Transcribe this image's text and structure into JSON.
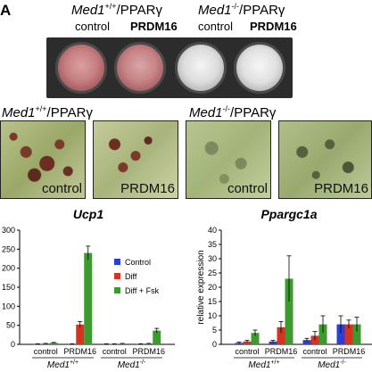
{
  "panel_letter": "A",
  "plate": {
    "headers": [
      {
        "gene": "Med1",
        "sup": "+/+",
        "suffix": "/PPARγ"
      },
      {
        "gene": "Med1",
        "sup": "-/-",
        "suffix": "/PPARγ"
      }
    ],
    "sublabels": [
      "control",
      "PRDM16",
      "control",
      "PRDM16"
    ]
  },
  "micro": {
    "headers": [
      {
        "gene": "Med1",
        "sup": "+/+",
        "suffix": "/PPARγ"
      },
      {
        "gene": "Med1",
        "sup": "-/-",
        "suffix": "/PPARγ"
      }
    ],
    "captions": [
      "control",
      "PRDM16",
      "control",
      "PRDM16"
    ]
  },
  "colors": {
    "control": "#2b3fd6",
    "diff": "#d63320",
    "diff_fsk": "#3d9a2f"
  },
  "chart_data": [
    {
      "type": "bar",
      "title": "Ucp1",
      "ylabel": "",
      "ylim": [
        0,
        300
      ],
      "yticks": [
        "0",
        "50",
        "100",
        "150",
        "200",
        "250",
        "300"
      ],
      "categories": [
        "control",
        "PRDM16",
        "control",
        "PRDM16"
      ],
      "group_labels": [
        {
          "gene": "Med1",
          "sup": "+/+"
        },
        {
          "gene": "Med1",
          "sup": "-/-"
        }
      ],
      "legend": [
        "Control",
        "Diff",
        "Diff + Fsk"
      ],
      "series": [
        {
          "name": "Control",
          "values": [
            1,
            1,
            1,
            1
          ],
          "errors": [
            0.5,
            0.5,
            0.5,
            0.5
          ]
        },
        {
          "name": "Diff",
          "values": [
            2,
            52,
            1,
            2
          ],
          "errors": [
            0.5,
            8,
            0.5,
            0.5
          ]
        },
        {
          "name": "Diff + Fsk",
          "values": [
            4,
            240,
            2,
            36
          ],
          "errors": [
            1,
            18,
            0.5,
            6
          ]
        }
      ]
    },
    {
      "type": "bar",
      "title": "Ppargc1a",
      "ylabel": "relative expression",
      "ylim": [
        0,
        40
      ],
      "yticks": [
        "0",
        "5",
        "10",
        "15",
        "20",
        "25",
        "30",
        "35",
        "40"
      ],
      "categories": [
        "control",
        "PRDM16",
        "control",
        "PRDM16"
      ],
      "group_labels": [
        {
          "gene": "Med1",
          "sup": "+/+"
        },
        {
          "gene": "Med1",
          "sup": "-/-"
        }
      ],
      "series": [
        {
          "name": "Control",
          "values": [
            0.5,
            1,
            1.5,
            7
          ],
          "errors": [
            0.3,
            0.4,
            0.6,
            3
          ]
        },
        {
          "name": "Diff",
          "values": [
            1,
            6,
            3,
            7
          ],
          "errors": [
            0.4,
            2,
            1.5,
            1.5
          ]
        },
        {
          "name": "Diff + Fsk",
          "values": [
            4,
            23,
            7,
            7
          ],
          "errors": [
            1,
            8,
            3,
            2.5
          ]
        }
      ]
    }
  ]
}
